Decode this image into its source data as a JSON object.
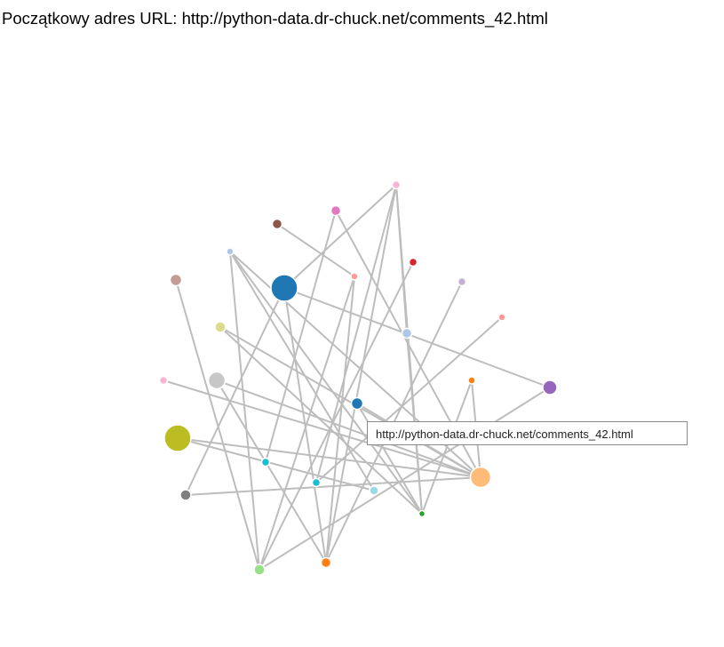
{
  "header": {
    "label": "Początkowy adres URL:",
    "url": "http://python-data.dr-chuck.net/comments_42.html"
  },
  "tooltip": {
    "text": "http://python-data.dr-chuck.net/comments_42.html"
  },
  "graph": {
    "nodes": [
      {
        "id": "n1",
        "color": "#f7b6d2"
      },
      {
        "id": "n2",
        "color": "#e377c2"
      },
      {
        "id": "n3",
        "color": "#8c564b"
      },
      {
        "id": "n4",
        "color": "#d62728"
      },
      {
        "id": "n5",
        "color": "#aec7e8"
      },
      {
        "id": "n6",
        "color": "#ff9896"
      },
      {
        "id": "n7",
        "color": "#c5b0d5"
      },
      {
        "id": "n8",
        "color": "#c49c94"
      },
      {
        "id": "n9",
        "color": "#1f77b4"
      },
      {
        "id": "n10",
        "color": "#ff9896"
      },
      {
        "id": "n11",
        "color": "#dbdb8d"
      },
      {
        "id": "n12",
        "color": "#aec7e8"
      },
      {
        "id": "n13",
        "color": "#f7b6d2"
      },
      {
        "id": "n14",
        "color": "#c7c7c7"
      },
      {
        "id": "n15",
        "color": "#ff7f0e"
      },
      {
        "id": "n16",
        "color": "#9467bd"
      },
      {
        "id": "n17",
        "color": "#1f77b4"
      },
      {
        "id": "n18",
        "color": "#bcbd22"
      },
      {
        "id": "n19",
        "color": "#17becf"
      },
      {
        "id": "n20",
        "color": "#ffbb78"
      },
      {
        "id": "n21",
        "color": "#17becf"
      },
      {
        "id": "n22",
        "color": "#9edae5"
      },
      {
        "id": "n23",
        "color": "#7f7f7f"
      },
      {
        "id": "n24",
        "color": "#2ca02c"
      },
      {
        "id": "n25",
        "color": "#98df8a"
      },
      {
        "id": "n26",
        "color": "#ff7f0e"
      }
    ],
    "edges": [
      [
        "n5",
        "n25"
      ],
      [
        "n5",
        "n24"
      ],
      [
        "n5",
        "n20"
      ],
      [
        "n5",
        "n22"
      ],
      [
        "n9",
        "n26"
      ],
      [
        "n9",
        "n23"
      ],
      [
        "n9",
        "n16"
      ],
      [
        "n8",
        "n25"
      ],
      [
        "n11",
        "n24"
      ],
      [
        "n11",
        "n20"
      ],
      [
        "n13",
        "n20"
      ],
      [
        "n14",
        "n20"
      ],
      [
        "n14",
        "n26"
      ],
      [
        "n18",
        "n20"
      ],
      [
        "n18",
        "n22"
      ],
      [
        "n23",
        "n20"
      ],
      [
        "n1",
        "n9"
      ],
      [
        "n1",
        "n21"
      ],
      [
        "n1",
        "n24"
      ],
      [
        "n1",
        "n26"
      ],
      [
        "n1",
        "n12"
      ],
      [
        "n2",
        "n19"
      ],
      [
        "n2",
        "n20"
      ],
      [
        "n3",
        "n6"
      ],
      [
        "n6",
        "n25"
      ],
      [
        "n6",
        "n26"
      ],
      [
        "n4",
        "n25"
      ],
      [
        "n7",
        "n26"
      ],
      [
        "n10",
        "n21"
      ],
      [
        "n12",
        "n24"
      ],
      [
        "n15",
        "n20"
      ],
      [
        "n15",
        "n24"
      ],
      [
        "n16",
        "n25"
      ],
      [
        "n17",
        "n20"
      ],
      [
        "n17",
        "n24"
      ]
    ]
  }
}
